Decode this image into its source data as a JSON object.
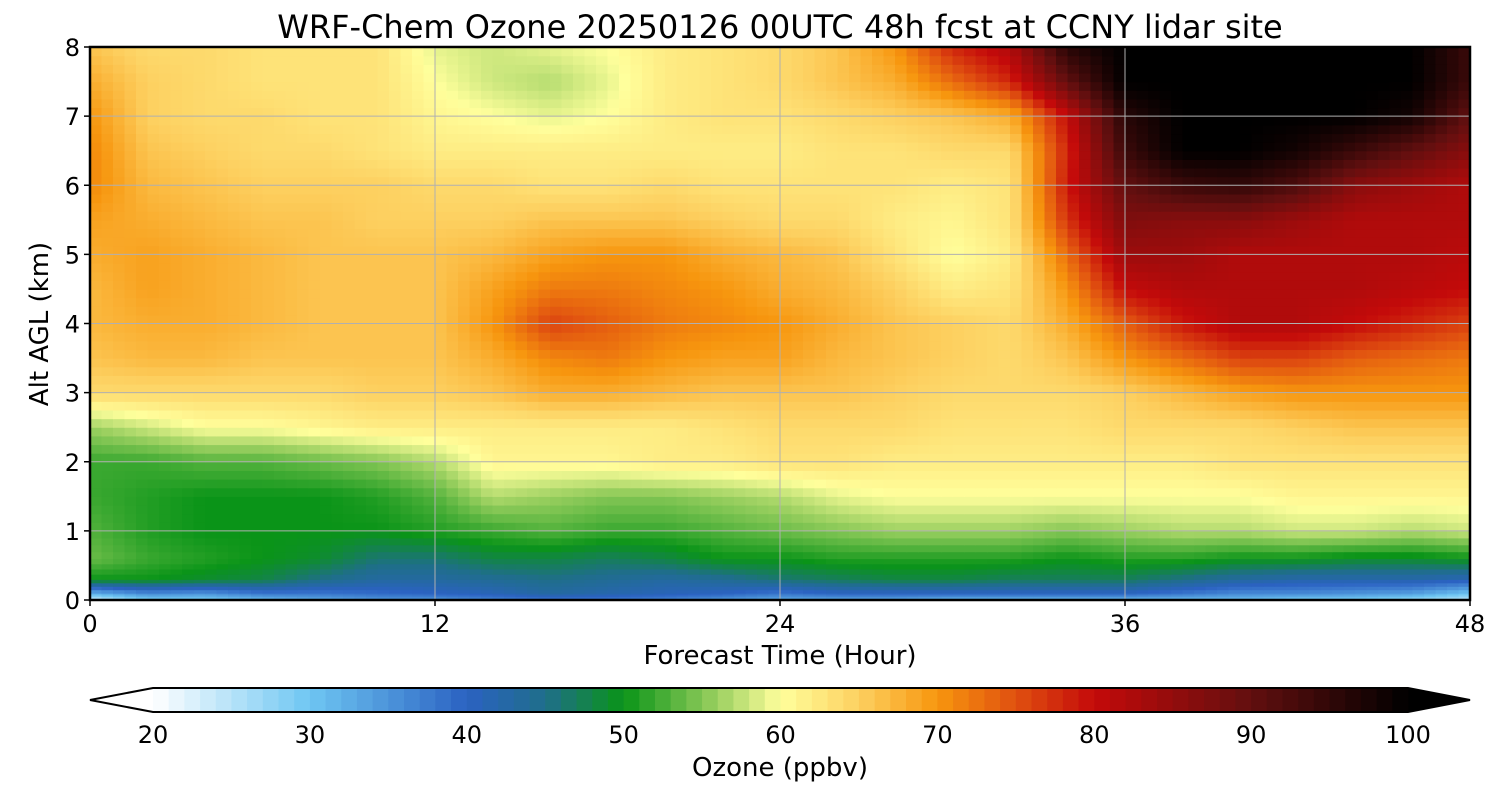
{
  "chart_data": {
    "type": "heatmap",
    "title": "WRF-Chem Ozone  20250126 00UTC 48h fcst at CCNY lidar site",
    "xlabel": "Forecast Time (Hour)",
    "ylabel": "Alt AGL (km)",
    "xlim": [
      0,
      48
    ],
    "ylim": [
      0,
      8
    ],
    "x_ticks": [
      "0",
      "12",
      "24",
      "36",
      "48"
    ],
    "y_ticks": [
      "0",
      "1",
      "2",
      "3",
      "4",
      "5",
      "6",
      "7",
      "8"
    ],
    "grid": true,
    "colorbar": {
      "label": "Ozone  (ppbv)",
      "range": [
        20,
        100
      ],
      "ticks": [
        "20",
        "30",
        "40",
        "50",
        "60",
        "70",
        "80",
        "90",
        "100"
      ],
      "extend": "both",
      "stops": [
        {
          "v": 20,
          "color": "#ffffff"
        },
        {
          "v": 30,
          "color": "#6ec6f2"
        },
        {
          "v": 40,
          "color": "#2b62c2"
        },
        {
          "v": 45,
          "color": "#1f6e8a"
        },
        {
          "v": 50,
          "color": "#0a9418"
        },
        {
          "v": 56,
          "color": "#9bd060"
        },
        {
          "v": 60,
          "color": "#ffff9c"
        },
        {
          "v": 65,
          "color": "#fdd060"
        },
        {
          "v": 70,
          "color": "#f7960e"
        },
        {
          "v": 75,
          "color": "#e05010"
        },
        {
          "v": 80,
          "color": "#c40a0a"
        },
        {
          "v": 90,
          "color": "#620f0f"
        },
        {
          "v": 100,
          "color": "#000000"
        }
      ]
    },
    "x": [
      0,
      2,
      4,
      6,
      8,
      10,
      12,
      14,
      16,
      18,
      20,
      22,
      24,
      26,
      28,
      30,
      32,
      34,
      36,
      38,
      40,
      42,
      44,
      46,
      48
    ],
    "y": [
      0,
      0.1,
      0.3,
      0.6,
      1,
      1.5,
      2,
      2.5,
      3,
      3.5,
      4,
      4.5,
      5,
      5.5,
      6,
      6.5,
      7,
      7.5,
      8
    ],
    "values": [
      [
        22,
        28,
        28,
        30,
        32,
        34,
        34,
        36,
        37,
        37,
        36,
        34,
        32,
        32,
        32,
        30,
        30,
        30,
        30,
        30,
        30,
        28,
        28,
        26,
        24
      ],
      [
        32,
        36,
        35,
        38,
        38,
        39,
        40,
        41,
        43,
        42,
        41,
        40,
        38,
        40,
        40,
        40,
        40,
        40,
        40,
        38,
        36,
        36,
        35,
        34,
        30
      ],
      [
        50,
        50,
        49,
        48,
        45,
        43,
        43,
        44,
        45,
        44,
        43,
        44,
        46,
        47,
        48,
        48,
        47,
        47,
        47,
        45,
        43,
        42,
        42,
        42,
        41
      ],
      [
        54,
        52,
        51,
        50,
        49,
        46,
        46,
        48,
        48,
        47,
        48,
        50,
        50,
        51,
        51,
        51,
        51,
        50,
        51,
        51,
        50,
        50,
        49,
        49,
        50
      ],
      [
        53,
        51,
        50,
        50,
        50,
        50,
        51,
        52,
        53,
        52,
        52,
        53,
        54,
        55,
        56,
        56,
        56,
        55,
        56,
        57,
        57,
        58,
        58,
        57,
        58
      ],
      [
        52,
        51,
        50,
        50,
        50,
        51,
        53,
        57,
        56,
        55,
        55,
        56,
        57,
        59,
        60,
        60,
        60,
        60,
        60,
        60,
        60,
        61,
        61,
        61,
        61
      ],
      [
        52,
        52,
        53,
        53,
        54,
        55,
        57,
        61,
        61,
        61,
        62,
        62,
        63,
        63,
        62,
        62,
        62,
        62,
        62,
        62,
        63,
        63,
        63,
        63,
        63
      ],
      [
        56,
        58,
        60,
        60,
        61,
        62,
        62,
        62,
        62,
        62,
        62,
        63,
        64,
        64,
        64,
        63,
        63,
        63,
        64,
        64,
        64,
        65,
        66,
        66,
        66
      ],
      [
        64,
        64,
        64,
        64,
        64,
        65,
        65,
        66,
        68,
        68,
        67,
        66,
        66,
        66,
        65,
        64,
        64,
        64,
        65,
        67,
        69,
        70,
        70,
        70,
        70
      ],
      [
        66,
        67,
        67,
        66,
        66,
        66,
        66,
        68,
        71,
        72,
        70,
        69,
        69,
        67,
        66,
        65,
        64,
        66,
        70,
        73,
        76,
        76,
        74,
        73,
        72
      ],
      [
        67,
        68,
        68,
        67,
        66,
        66,
        66,
        70,
        76,
        74,
        72,
        71,
        70,
        68,
        66,
        65,
        64,
        68,
        74,
        79,
        82,
        82,
        80,
        78,
        76
      ],
      [
        67,
        69,
        68,
        67,
        66,
        66,
        66,
        69,
        72,
        72,
        71,
        70,
        68,
        67,
        65,
        62,
        63,
        70,
        80,
        82,
        82,
        82,
        82,
        81,
        80
      ],
      [
        68,
        69,
        68,
        67,
        66,
        66,
        66,
        67,
        69,
        70,
        70,
        68,
        67,
        66,
        63,
        60,
        62,
        73,
        84,
        84,
        82,
        82,
        82,
        82,
        81
      ],
      [
        69,
        68,
        67,
        66,
        66,
        65,
        65,
        65,
        66,
        66,
        66,
        65,
        64,
        64,
        62,
        61,
        63,
        77,
        87,
        86,
        86,
        84,
        82,
        82,
        82
      ],
      [
        71,
        67,
        66,
        65,
        65,
        65,
        64,
        64,
        63,
        63,
        64,
        63,
        63,
        63,
        63,
        62,
        63,
        79,
        90,
        94,
        95,
        92,
        86,
        84,
        82
      ],
      [
        71,
        66,
        65,
        64,
        64,
        63,
        62,
        62,
        62,
        62,
        62,
        62,
        62,
        63,
        63,
        64,
        64,
        78,
        94,
        100,
        100,
        98,
        94,
        90,
        86
      ],
      [
        70,
        65,
        64,
        64,
        63,
        63,
        61,
        60,
        59,
        60,
        62,
        63,
        63,
        64,
        65,
        66,
        68,
        80,
        96,
        100,
        100,
        100,
        100,
        98,
        90
      ],
      [
        68,
        65,
        64,
        63,
        63,
        63,
        60,
        58,
        57,
        59,
        62,
        63,
        64,
        66,
        68,
        73,
        78,
        90,
        100,
        100,
        100,
        100,
        100,
        100,
        94
      ],
      [
        66,
        64,
        64,
        63,
        63,
        63,
        59,
        58,
        59,
        60,
        62,
        63,
        64,
        66,
        70,
        78,
        82,
        96,
        100,
        100,
        100,
        100,
        100,
        100,
        94
      ]
    ]
  }
}
